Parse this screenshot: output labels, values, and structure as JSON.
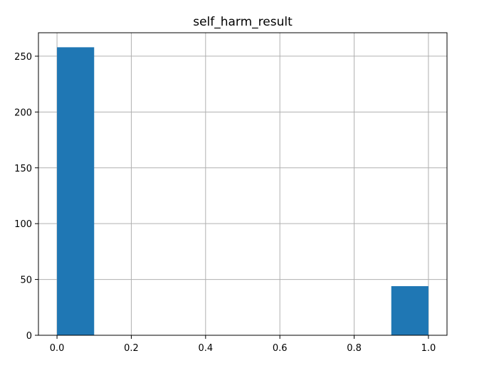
{
  "chart_data": {
    "type": "bar",
    "title": "self_harm_result",
    "xlabel": "",
    "ylabel": "",
    "bins": [
      {
        "x0": 0.0,
        "x1": 0.1,
        "value": 258
      },
      {
        "x0": 0.1,
        "x1": 0.2,
        "value": 0
      },
      {
        "x0": 0.2,
        "x1": 0.3,
        "value": 0
      },
      {
        "x0": 0.3,
        "x1": 0.4,
        "value": 0
      },
      {
        "x0": 0.4,
        "x1": 0.5,
        "value": 0
      },
      {
        "x0": 0.5,
        "x1": 0.6,
        "value": 0
      },
      {
        "x0": 0.6,
        "x1": 0.7,
        "value": 0
      },
      {
        "x0": 0.7,
        "x1": 0.8,
        "value": 0
      },
      {
        "x0": 0.8,
        "x1": 0.9,
        "value": 0
      },
      {
        "x0": 0.9,
        "x1": 1.0,
        "value": 44
      }
    ],
    "xlim": [
      -0.05,
      1.05
    ],
    "ylim": [
      0,
      271
    ],
    "x_ticks": [
      {
        "value": 0.0,
        "label": "0.0"
      },
      {
        "value": 0.2,
        "label": "0.2"
      },
      {
        "value": 0.4,
        "label": "0.4"
      },
      {
        "value": 0.6,
        "label": "0.6"
      },
      {
        "value": 0.8,
        "label": "0.8"
      },
      {
        "value": 1.0,
        "label": "1.0"
      }
    ],
    "y_ticks": [
      {
        "value": 0,
        "label": "0"
      },
      {
        "value": 50,
        "label": "50"
      },
      {
        "value": 100,
        "label": "100"
      },
      {
        "value": 150,
        "label": "150"
      },
      {
        "value": 200,
        "label": "200"
      },
      {
        "value": 250,
        "label": "250"
      }
    ],
    "grid": true,
    "colors": {
      "bar": "#1f77b4",
      "grid": "#b0b0b0",
      "axis": "#000000"
    }
  }
}
